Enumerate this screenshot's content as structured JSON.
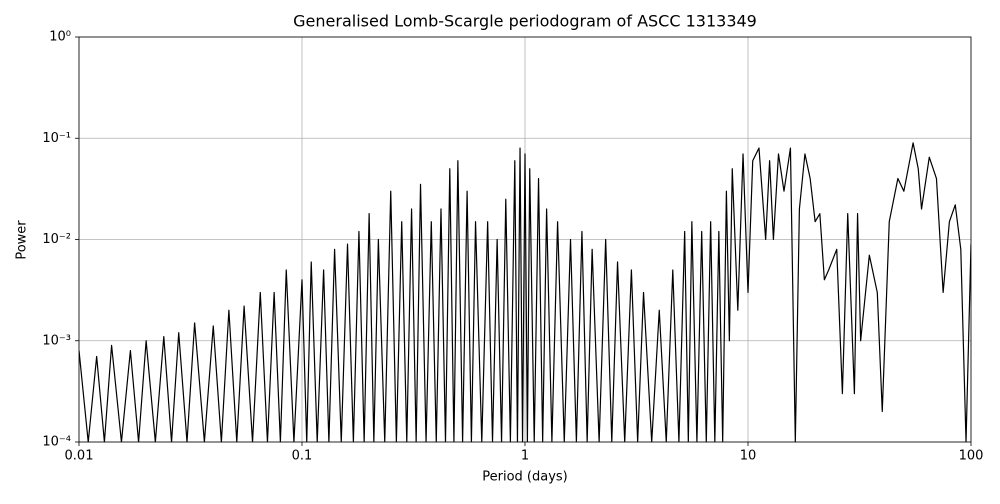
{
  "chart_data": {
    "type": "line",
    "title": "Generalised Lomb-Scargle periodogram of ASCC 1313349",
    "xlabel": "Period (days)",
    "ylabel": "Power",
    "xscale": "log",
    "yscale": "log",
    "grid": true,
    "color": "#000000",
    "xlim": [
      0.01,
      100
    ],
    "ylim": [
      0.0001,
      1
    ],
    "xticks": [
      0.01,
      0.1,
      1,
      10,
      100
    ],
    "yticks": [
      {
        "value": 0.0001,
        "label": "10⁻⁴"
      },
      {
        "value": 0.001,
        "label": "10⁻³"
      },
      {
        "value": 0.01,
        "label": "10⁻²"
      },
      {
        "value": 0.1,
        "label": "10⁻¹"
      },
      {
        "value": 1,
        "label": "10⁰"
      }
    ],
    "x": [
      0.01,
      0.011,
      0.012,
      0.013,
      0.014,
      0.0155,
      0.017,
      0.0185,
      0.02,
      0.022,
      0.024,
      0.026,
      0.028,
      0.0305,
      0.033,
      0.0365,
      0.04,
      0.0435,
      0.047,
      0.051,
      0.055,
      0.06,
      0.065,
      0.07,
      0.075,
      0.08,
      0.085,
      0.092,
      0.1,
      0.105,
      0.11,
      0.117,
      0.125,
      0.132,
      0.14,
      0.15,
      0.16,
      0.17,
      0.18,
      0.19,
      0.2,
      0.21,
      0.22,
      0.235,
      0.25,
      0.265,
      0.28,
      0.295,
      0.31,
      0.325,
      0.34,
      0.36,
      0.38,
      0.4,
      0.42,
      0.44,
      0.46,
      0.48,
      0.5,
      0.525,
      0.55,
      0.575,
      0.6,
      0.64,
      0.68,
      0.715,
      0.75,
      0.785,
      0.82,
      0.86,
      0.9,
      0.925,
      0.95,
      0.975,
      1.0,
      1.025,
      1.05,
      1.1,
      1.15,
      1.2,
      1.25,
      1.32,
      1.4,
      1.5,
      1.6,
      1.7,
      1.8,
      1.9,
      2.0,
      2.15,
      2.3,
      2.45,
      2.6,
      2.8,
      3.0,
      3.2,
      3.4,
      3.7,
      4.0,
      4.3,
      4.6,
      4.9,
      5.2,
      5.4,
      5.6,
      5.9,
      6.2,
      6.5,
      6.8,
      7.1,
      7.4,
      7.7,
      8.0,
      8.25,
      8.5,
      9,
      9.5,
      10,
      10.5,
      11.2,
      12,
      12.5,
      13,
      13.7,
      14.5,
      15.5,
      16.3,
      17,
      18,
      19,
      20,
      21,
      22,
      23,
      25,
      26.5,
      28,
      30,
      31,
      32,
      35,
      38,
      40,
      43,
      47,
      50,
      55,
      58,
      60,
      65,
      70,
      75,
      80,
      85,
      90,
      95,
      100
    ],
    "values": [
      0.0008,
      0.0001,
      0.0007,
      0.0001,
      0.0009,
      0.0001,
      0.0008,
      0.0001,
      0.001,
      0.0001,
      0.0011,
      0.0001,
      0.0012,
      0.0001,
      0.0015,
      0.0001,
      0.0014,
      0.0001,
      0.002,
      0.0001,
      0.0022,
      0.0001,
      0.003,
      0.0001,
      0.003,
      0.0001,
      0.005,
      0.0001,
      0.004,
      0.0001,
      0.006,
      0.0001,
      0.005,
      0.0001,
      0.008,
      0.0001,
      0.009,
      0.0001,
      0.012,
      0.0001,
      0.018,
      0.0001,
      0.01,
      0.0001,
      0.03,
      0.0001,
      0.015,
      0.0001,
      0.02,
      0.0001,
      0.035,
      0.0001,
      0.015,
      0.0001,
      0.02,
      0.0001,
      0.05,
      0.0001,
      0.06,
      0.0001,
      0.03,
      0.0001,
      0.015,
      0.0001,
      0.015,
      0.0001,
      0.01,
      0.0001,
      0.025,
      0.0001,
      0.06,
      0.0001,
      0.08,
      0.0001,
      0.07,
      0.0001,
      0.05,
      0.0001,
      0.04,
      0.0001,
      0.02,
      0.0001,
      0.015,
      0.0001,
      0.01,
      0.0001,
      0.012,
      0.0001,
      0.008,
      0.0001,
      0.01,
      0.0001,
      0.006,
      0.0001,
      0.005,
      0.0001,
      0.003,
      0.0001,
      0.002,
      0.0001,
      0.005,
      0.0001,
      0.012,
      0.0001,
      0.015,
      0.0001,
      0.012,
      0.0001,
      0.015,
      0.0001,
      0.012,
      0.0001,
      0.03,
      0.001,
      0.05,
      0.002,
      0.07,
      0.003,
      0.06,
      0.08,
      0.01,
      0.06,
      0.01,
      0.07,
      0.03,
      0.08,
      0.0001,
      0.02,
      0.07,
      0.04,
      0.015,
      0.018,
      0.004,
      0.005,
      0.008,
      0.0003,
      0.018,
      0.0003,
      0.018,
      0.001,
      0.007,
      0.003,
      0.0002,
      0.015,
      0.04,
      0.03,
      0.09,
      0.05,
      0.02,
      0.065,
      0.04,
      0.003,
      0.015,
      0.022,
      0.008,
      0.0001,
      0.009
    ]
  }
}
